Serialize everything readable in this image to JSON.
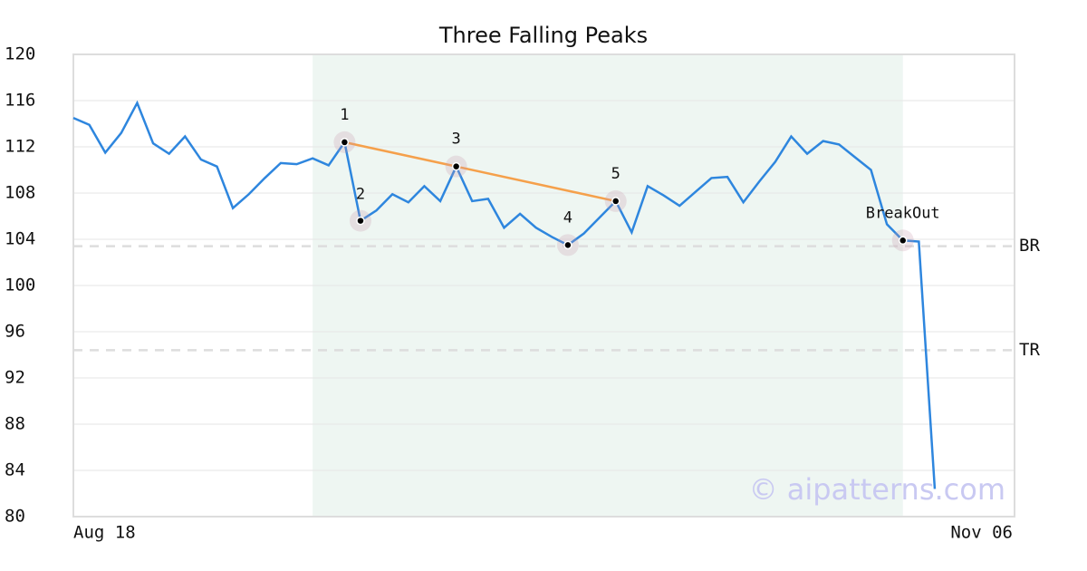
{
  "chart_data": {
    "type": "line",
    "title": "Three Falling Peaks",
    "color": "#2e86de",
    "categories": [
      "Aug 18",
      null,
      null,
      null,
      null,
      null,
      null,
      null,
      null,
      null,
      null,
      null,
      null,
      null,
      null,
      null,
      null,
      null,
      null,
      null,
      null,
      null,
      null,
      null,
      null,
      null,
      null,
      null,
      null,
      null,
      null,
      null,
      null,
      null,
      null,
      null,
      null,
      null,
      null,
      null,
      null,
      null,
      null,
      null,
      null,
      null,
      null,
      null,
      null,
      null,
      null,
      null,
      null,
      null,
      "Nov 06"
    ],
    "values": [
      114.5,
      113.9,
      111.5,
      113.2,
      115.8,
      112.3,
      111.4,
      112.9,
      110.9,
      110.3,
      106.7,
      107.9,
      109.3,
      110.6,
      110.5,
      111.0,
      110.4,
      112.4,
      105.6,
      106.5,
      107.9,
      107.2,
      108.6,
      107.3,
      110.3,
      107.3,
      107.5,
      105.0,
      106.2,
      105.0,
      104.2,
      103.5,
      104.5,
      105.9,
      107.3,
      104.6,
      108.6,
      107.8,
      106.9,
      108.1,
      109.3,
      109.4,
      107.2,
      109.0,
      110.7,
      112.9,
      111.4,
      112.5,
      112.2,
      111.1,
      110.0,
      105.3,
      103.9,
      103.8,
      82.4
    ],
    "ylim": [
      80,
      120
    ],
    "yticks": [
      80,
      84,
      88,
      92,
      96,
      100,
      104,
      108,
      112,
      116,
      120
    ],
    "grid": true,
    "shaded_range": {
      "start": 15,
      "end": 52,
      "color": "#eef6f2"
    },
    "annotations": [
      {
        "index": 17,
        "label": "1"
      },
      {
        "index": 18,
        "label": "2"
      },
      {
        "index": 24,
        "label": "3"
      },
      {
        "index": 31,
        "label": "4"
      },
      {
        "index": 34,
        "label": "5"
      },
      {
        "index": 52,
        "label": "BreakOut"
      }
    ],
    "trendline": {
      "color": "#f5a04b",
      "points": [
        0,
        2,
        4
      ]
    },
    "levels": [
      {
        "value": 103.4,
        "label": "BR"
      },
      {
        "value": 94.4,
        "label": "TR"
      }
    ],
    "watermark": "© aipatterns.com"
  }
}
